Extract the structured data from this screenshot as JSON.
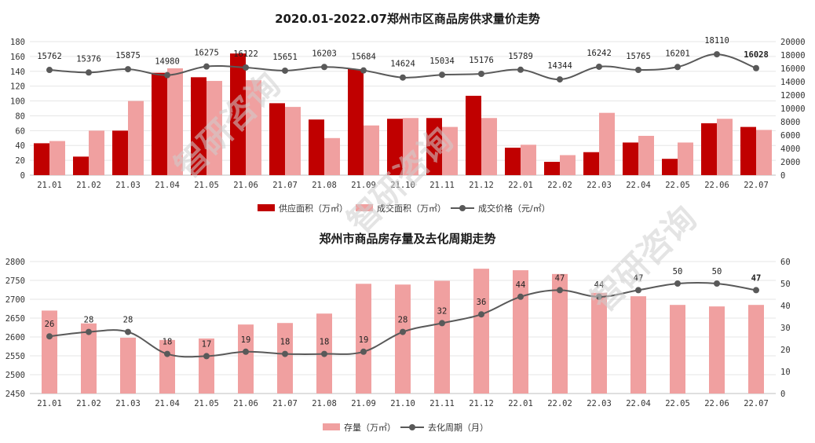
{
  "watermark": "智研咨询",
  "colors": {
    "supply": "#c00000",
    "trade": "#f0a0a0",
    "price_line": "#595959",
    "stock": "#f0a0a0",
    "cycle_line": "#595959"
  },
  "chart_data": [
    {
      "type": "bar",
      "title": "2020.01-2022.07郑州市区商品房供求量价走势",
      "categories": [
        "21.01",
        "21.02",
        "21.03",
        "21.04",
        "21.05",
        "21.06",
        "21.07",
        "21.08",
        "21.09",
        "21.10",
        "21.11",
        "21.12",
        "22.01",
        "22.02",
        "22.03",
        "22.04",
        "22.05",
        "22.06",
        "22.07"
      ],
      "series": [
        {
          "name": "供应面积（万㎡）",
          "axis": "left",
          "kind": "bar",
          "values": [
            43,
            25,
            60,
            138,
            132,
            164,
            97,
            75,
            143,
            76,
            77,
            107,
            37,
            18,
            31,
            44,
            22,
            70,
            65
          ]
        },
        {
          "name": "成交面积（万㎡）",
          "axis": "left",
          "kind": "bar",
          "values": [
            46,
            60,
            100,
            144,
            127,
            128,
            92,
            50,
            67,
            77,
            65,
            77,
            41,
            27,
            84,
            53,
            44,
            76,
            61
          ]
        },
        {
          "name": "成交价格（元/㎡）",
          "axis": "right",
          "kind": "line",
          "values": [
            15762,
            15376,
            15875,
            14980,
            16275,
            16122,
            15651,
            16203,
            15684,
            14624,
            15034,
            15176,
            15789,
            14344,
            16242,
            15765,
            16201,
            18110,
            16028
          ]
        }
      ],
      "y_left": {
        "min": 0,
        "max": 180,
        "step": 20,
        "ticks": [
          "0",
          "20",
          "40",
          "60",
          "80",
          "100",
          "120",
          "140",
          "160",
          "180"
        ]
      },
      "y_right": {
        "min": 0,
        "max": 20000,
        "step": 2000,
        "ticks": [
          "0",
          "2000",
          "4000",
          "6000",
          "8000",
          "10000",
          "12000",
          "14000",
          "16000",
          "18000",
          "20000"
        ]
      },
      "line_labels": [
        "15762",
        "15376",
        "15875",
        "14980",
        "16275",
        "16122",
        "15651",
        "16203",
        "15684",
        "14624",
        "15034",
        "15176",
        "15789",
        "14344",
        "16242",
        "15765",
        "16201",
        "18110",
        "16028"
      ],
      "legend": [
        "供应面积（万㎡）",
        "成交面积（万㎡）",
        "成交价格（元/㎡）"
      ]
    },
    {
      "type": "bar",
      "title": "郑州市商品房存量及去化周期走势",
      "categories": [
        "21.01",
        "21.02",
        "21.03",
        "21.04",
        "21.05",
        "21.06",
        "21.07",
        "21.08",
        "21.09",
        "21.10",
        "21.11",
        "21.12",
        "22.01",
        "22.02",
        "22.03",
        "22.04",
        "22.05",
        "22.06",
        "22.07"
      ],
      "series": [
        {
          "name": "存量（万㎡）",
          "axis": "left",
          "kind": "bar",
          "values": [
            2670,
            2636,
            2598,
            2592,
            2596,
            2633,
            2637,
            2662,
            2741,
            2739,
            2749,
            2781,
            2777,
            2767,
            2717,
            2708,
            2685,
            2681,
            2685
          ]
        },
        {
          "name": "去化周期（月）",
          "axis": "right",
          "kind": "line",
          "values": [
            26,
            28,
            28,
            18,
            17,
            19,
            18,
            18,
            19,
            28,
            32,
            36,
            44,
            47,
            44,
            47,
            50,
            50,
            47
          ]
        }
      ],
      "y_left": {
        "min": 2450,
        "max": 2800,
        "step": 50,
        "ticks": [
          "2450",
          "2500",
          "2550",
          "2600",
          "2650",
          "2700",
          "2750",
          "2800"
        ]
      },
      "y_right": {
        "min": 0,
        "max": 60,
        "step": 10,
        "ticks": [
          "0",
          "10",
          "20",
          "30",
          "40",
          "50",
          "60"
        ]
      },
      "line_labels": [
        "26",
        "28",
        "28",
        "18",
        "17",
        "19",
        "18",
        "18",
        "19",
        "28",
        "32",
        "36",
        "44",
        "47",
        "44",
        "47",
        "50",
        "50",
        "47"
      ],
      "legend": [
        "存量（万㎡）",
        "去化周期（月）"
      ]
    }
  ]
}
